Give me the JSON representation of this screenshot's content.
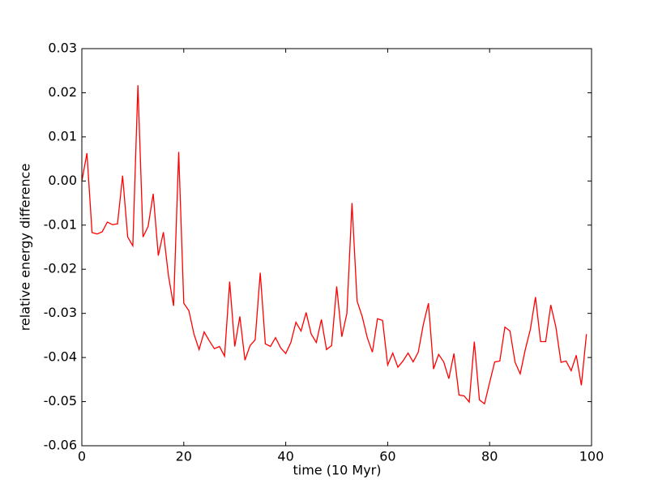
{
  "chart_data": {
    "type": "line",
    "xlabel": "time (10 Myr)",
    "ylabel": "relative energy difference",
    "color": "#ff0000",
    "x": [
      0,
      1,
      2,
      3,
      4,
      5,
      6,
      7,
      8,
      9,
      10,
      11,
      12,
      13,
      14,
      15,
      16,
      17,
      18,
      19,
      20,
      21,
      22,
      23,
      24,
      25,
      26,
      27,
      28,
      29,
      30,
      31,
      32,
      33,
      34,
      35,
      36,
      37,
      38,
      39,
      40,
      41,
      42,
      43,
      44,
      45,
      46,
      47,
      48,
      49,
      50,
      51,
      52,
      53,
      54,
      55,
      56,
      57,
      58,
      59,
      60,
      61,
      62,
      63,
      64,
      65,
      66,
      67,
      68,
      69,
      70,
      71,
      72,
      73,
      74,
      75,
      76,
      77,
      78,
      79,
      80,
      81,
      82,
      83,
      84,
      85,
      86,
      87,
      88,
      89,
      90,
      91,
      92,
      93,
      94,
      95,
      96,
      97,
      98,
      99
    ],
    "values": [
      0.0,
      0.0063,
      -0.0117,
      -0.012,
      -0.0115,
      -0.0093,
      -0.0099,
      -0.0097,
      0.0012,
      -0.0127,
      -0.0147,
      0.0217,
      -0.0127,
      -0.0103,
      -0.0029,
      -0.0169,
      -0.0116,
      -0.0215,
      -0.0283,
      0.0066,
      -0.0277,
      -0.0294,
      -0.0347,
      -0.0382,
      -0.0342,
      -0.0362,
      -0.038,
      -0.0375,
      -0.0397,
      -0.0228,
      -0.0375,
      -0.0307,
      -0.0406,
      -0.0373,
      -0.036,
      -0.0208,
      -0.0369,
      -0.0375,
      -0.0355,
      -0.0378,
      -0.0391,
      -0.0366,
      -0.032,
      -0.034,
      -0.0298,
      -0.0347,
      -0.0366,
      -0.0314,
      -0.0382,
      -0.0373,
      -0.0239,
      -0.0353,
      -0.03,
      -0.005,
      -0.0272,
      -0.0307,
      -0.0355,
      -0.0388,
      -0.0312,
      -0.0316,
      -0.0417,
      -0.039,
      -0.0422,
      -0.0408,
      -0.039,
      -0.041,
      -0.0388,
      -0.0325,
      -0.0277,
      -0.0426,
      -0.0393,
      -0.041,
      -0.0448,
      -0.0391,
      -0.0485,
      -0.0487,
      -0.0501,
      -0.0364,
      -0.0496,
      -0.0505,
      -0.0457,
      -0.041,
      -0.0408,
      -0.0331,
      -0.034,
      -0.0411,
      -0.0437,
      -0.0382,
      -0.0336,
      -0.0263,
      -0.0364,
      -0.0364,
      -0.0281,
      -0.0331,
      -0.0411,
      -0.0408,
      -0.043,
      -0.0395,
      -0.0463,
      -0.0347
    ],
    "xlim": [
      0,
      100
    ],
    "xticks": [
      0,
      20,
      40,
      60,
      80,
      100
    ],
    "ylim": [
      -0.06,
      0.03
    ],
    "yticks": [
      {
        "value": -0.06,
        "label": "-0.06"
      },
      {
        "value": -0.05,
        "label": "-0.05"
      },
      {
        "value": -0.04,
        "label": "-0.04"
      },
      {
        "value": -0.03,
        "label": "-0.03"
      },
      {
        "value": -0.02,
        "label": "-0.02"
      },
      {
        "value": -0.01,
        "label": "-0.01"
      },
      {
        "value": 0,
        "label": "0.00"
      },
      {
        "value": 0.01,
        "label": "0.01"
      },
      {
        "value": 0.02,
        "label": "0.02"
      },
      {
        "value": 0.03,
        "label": "0.03"
      }
    ],
    "grid": false
  }
}
